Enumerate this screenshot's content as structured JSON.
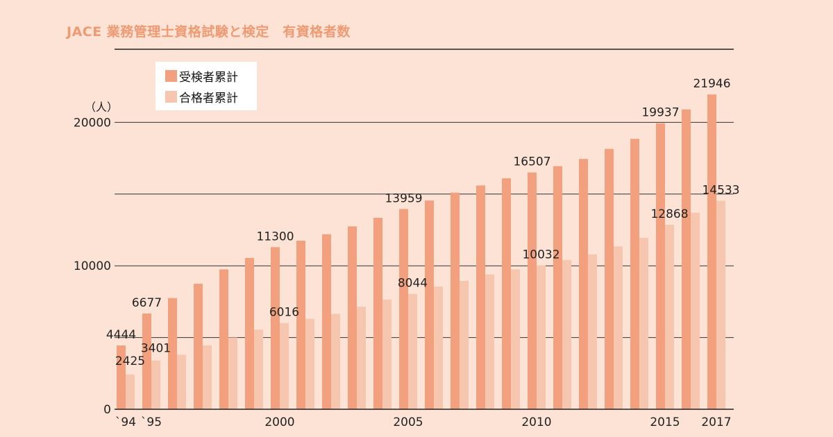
{
  "title": "JACE 業務管理士資格試験と検定　有資格者数",
  "unit_label": "（人）",
  "colors": {
    "background": "#fde3d6",
    "title": "#ee9a73",
    "examinees": "#f2a07e",
    "passers": "#f7c6ae"
  },
  "chart_data": {
    "type": "bar",
    "categories": [
      "1994",
      "1995",
      "1996",
      "1997",
      "1998",
      "1999",
      "2000",
      "2001",
      "2002",
      "2003",
      "2004",
      "2005",
      "2006",
      "2007",
      "2008",
      "2009",
      "2010",
      "2011",
      "2012",
      "2013",
      "2014",
      "2015",
      "2016",
      "2017"
    ],
    "x_tick_labels": [
      {
        "index": 0,
        "label": "`94"
      },
      {
        "index": 1,
        "label": "`95"
      },
      {
        "index": 6,
        "label": "2000"
      },
      {
        "index": 11,
        "label": "2005"
      },
      {
        "index": 16,
        "label": "2010"
      },
      {
        "index": 21,
        "label": "2015"
      },
      {
        "index": 23,
        "label": "2017"
      }
    ],
    "y_ticks": [
      0,
      10000,
      20000
    ],
    "gridlines": [
      5000,
      10000,
      15000,
      20000
    ],
    "ylim": [
      0,
      22000
    ],
    "legend_position": "top-left",
    "series": [
      {
        "name": "受検者累計",
        "color": "#f2a07e",
        "values": [
          4444,
          6677,
          7750,
          8750,
          9750,
          10550,
          11300,
          11750,
          12200,
          12750,
          13350,
          13959,
          14550,
          15100,
          15600,
          16100,
          16507,
          16950,
          17450,
          18150,
          18850,
          19937,
          20900,
          21946
        ],
        "labels": [
          {
            "index": 0,
            "text": "4444"
          },
          {
            "index": 1,
            "text": "6677"
          },
          {
            "index": 6,
            "text": "11300"
          },
          {
            "index": 11,
            "text": "13959"
          },
          {
            "index": 16,
            "text": "16507"
          },
          {
            "index": 21,
            "text": "19937"
          },
          {
            "index": 23,
            "text": "21946"
          }
        ]
      },
      {
        "name": "合格者累計",
        "color": "#f7c6ae",
        "values": [
          2425,
          3401,
          3800,
          4450,
          5000,
          5550,
          6016,
          6300,
          6650,
          7150,
          7650,
          8044,
          8550,
          8950,
          9400,
          9750,
          10032,
          10400,
          10800,
          11350,
          11950,
          12868,
          13700,
          14533
        ],
        "labels": [
          {
            "index": 0,
            "text": "2425"
          },
          {
            "index": 1,
            "text": "3401"
          },
          {
            "index": 6,
            "text": "6016"
          },
          {
            "index": 11,
            "text": "8044"
          },
          {
            "index": 16,
            "text": "10032"
          },
          {
            "index": 21,
            "text": "12868"
          },
          {
            "index": 23,
            "text": "14533"
          }
        ]
      }
    ]
  }
}
